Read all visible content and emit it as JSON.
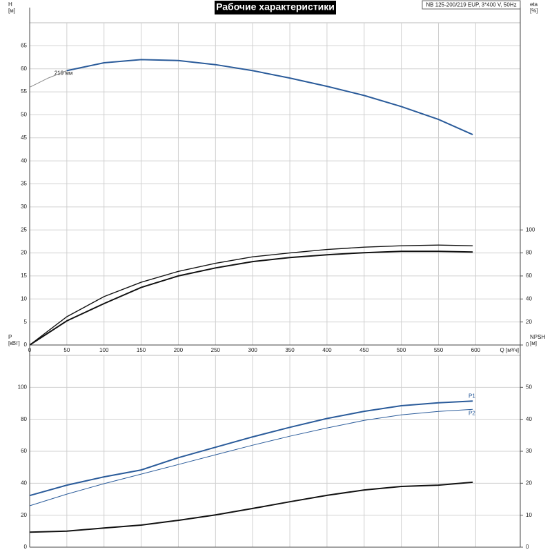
{
  "chart_data": [
    {
      "type": "line",
      "title": "Рабочие характеристики",
      "subtitle": "NB 125-200/219 EUP, 3*400 V, 50Hz",
      "y_label": "H",
      "y_unit": "[м]",
      "y2_label": "eta",
      "y2_unit": "[%]",
      "x_label": "Q [м³/ч]",
      "xlim": [
        0,
        660
      ],
      "xticks": [
        0,
        50,
        100,
        150,
        200,
        250,
        300,
        350,
        400,
        450,
        500,
        550,
        600
      ],
      "ylim": [
        0,
        70
      ],
      "yticks": [
        0,
        5,
        10,
        15,
        20,
        25,
        30,
        35,
        40,
        45,
        50,
        55,
        60,
        65
      ],
      "y2lim": [
        0,
        280
      ],
      "y2ticks": [
        0,
        20,
        40,
        60,
        80,
        100
      ],
      "grid": true,
      "series": [
        {
          "name": "219 мм",
          "color": "#2a5b9a",
          "width": 2,
          "x": [
            50,
            100,
            150,
            200,
            250,
            300,
            350,
            400,
            450,
            500,
            550,
            596
          ],
          "values": [
            59.6,
            61.3,
            62.0,
            61.8,
            60.9,
            59.6,
            58.0,
            56.2,
            54.2,
            51.8,
            49.0,
            45.7
          ]
        },
        {
          "color": "#888888",
          "width": 1,
          "x": [
            0,
            25,
            50
          ],
          "values": [
            56.0,
            58.0,
            59.6
          ]
        },
        {
          "color": "#111111",
          "width": 1.4,
          "axis": "y2",
          "x": [
            0,
            50,
            100,
            150,
            200,
            250,
            300,
            350,
            400,
            450,
            500,
            550,
            596
          ],
          "values": [
            0,
            24.6,
            42,
            54.5,
            64,
            71,
            76.6,
            80,
            83,
            85,
            86.2,
            86.8,
            86.2
          ]
        },
        {
          "color": "#111111",
          "width": 2,
          "axis": "y2",
          "x": [
            0,
            50,
            100,
            150,
            200,
            250,
            300,
            350,
            400,
            450,
            500,
            550,
            596
          ],
          "values": [
            0,
            21,
            36,
            50,
            60,
            67,
            72.5,
            76,
            78.4,
            80.2,
            81.4,
            81.4,
            80.8
          ]
        }
      ]
    },
    {
      "type": "line",
      "y_label": "P",
      "y_unit": "[кВт]",
      "y2_label": "NPSH",
      "y2_unit": "[м]",
      "xlim": [
        0,
        660
      ],
      "xticks": [
        0,
        50,
        100,
        150,
        200,
        250,
        300,
        350,
        400,
        450,
        500,
        550,
        600
      ],
      "ylim": [
        0,
        120
      ],
      "yticks": [
        0,
        20,
        40,
        60,
        80,
        100
      ],
      "y2lim": [
        0,
        60
      ],
      "y2ticks": [
        0,
        10,
        20,
        30,
        40,
        50
      ],
      "grid": true,
      "series": [
        {
          "name": "P1",
          "color": "#2a5b9a",
          "width": 2,
          "x": [
            0,
            50,
            100,
            150,
            200,
            250,
            300,
            350,
            400,
            450,
            500,
            550,
            596
          ],
          "values": [
            32.3,
            38.8,
            44,
            48.3,
            56,
            62.5,
            69,
            75,
            80.5,
            85,
            88.5,
            90.3,
            91.4
          ]
        },
        {
          "name": "P2",
          "color": "#2a5b9a",
          "width": 1,
          "x": [
            0,
            50,
            100,
            150,
            200,
            250,
            300,
            350,
            400,
            450,
            500,
            550,
            596
          ],
          "values": [
            25.9,
            33.2,
            39.7,
            45.7,
            51.7,
            57.8,
            63.8,
            69.4,
            74.6,
            79.3,
            82.8,
            84.9,
            86.2
          ]
        },
        {
          "color": "#111111",
          "width": 2,
          "axis": "y2",
          "x": [
            0,
            50,
            100,
            150,
            200,
            250,
            300,
            350,
            400,
            450,
            500,
            550,
            596
          ],
          "values": [
            4.7,
            5.0,
            6.0,
            6.9,
            8.4,
            10.1,
            12.1,
            14.2,
            16.2,
            17.9,
            19.0,
            19.4,
            20.3
          ]
        }
      ]
    }
  ]
}
